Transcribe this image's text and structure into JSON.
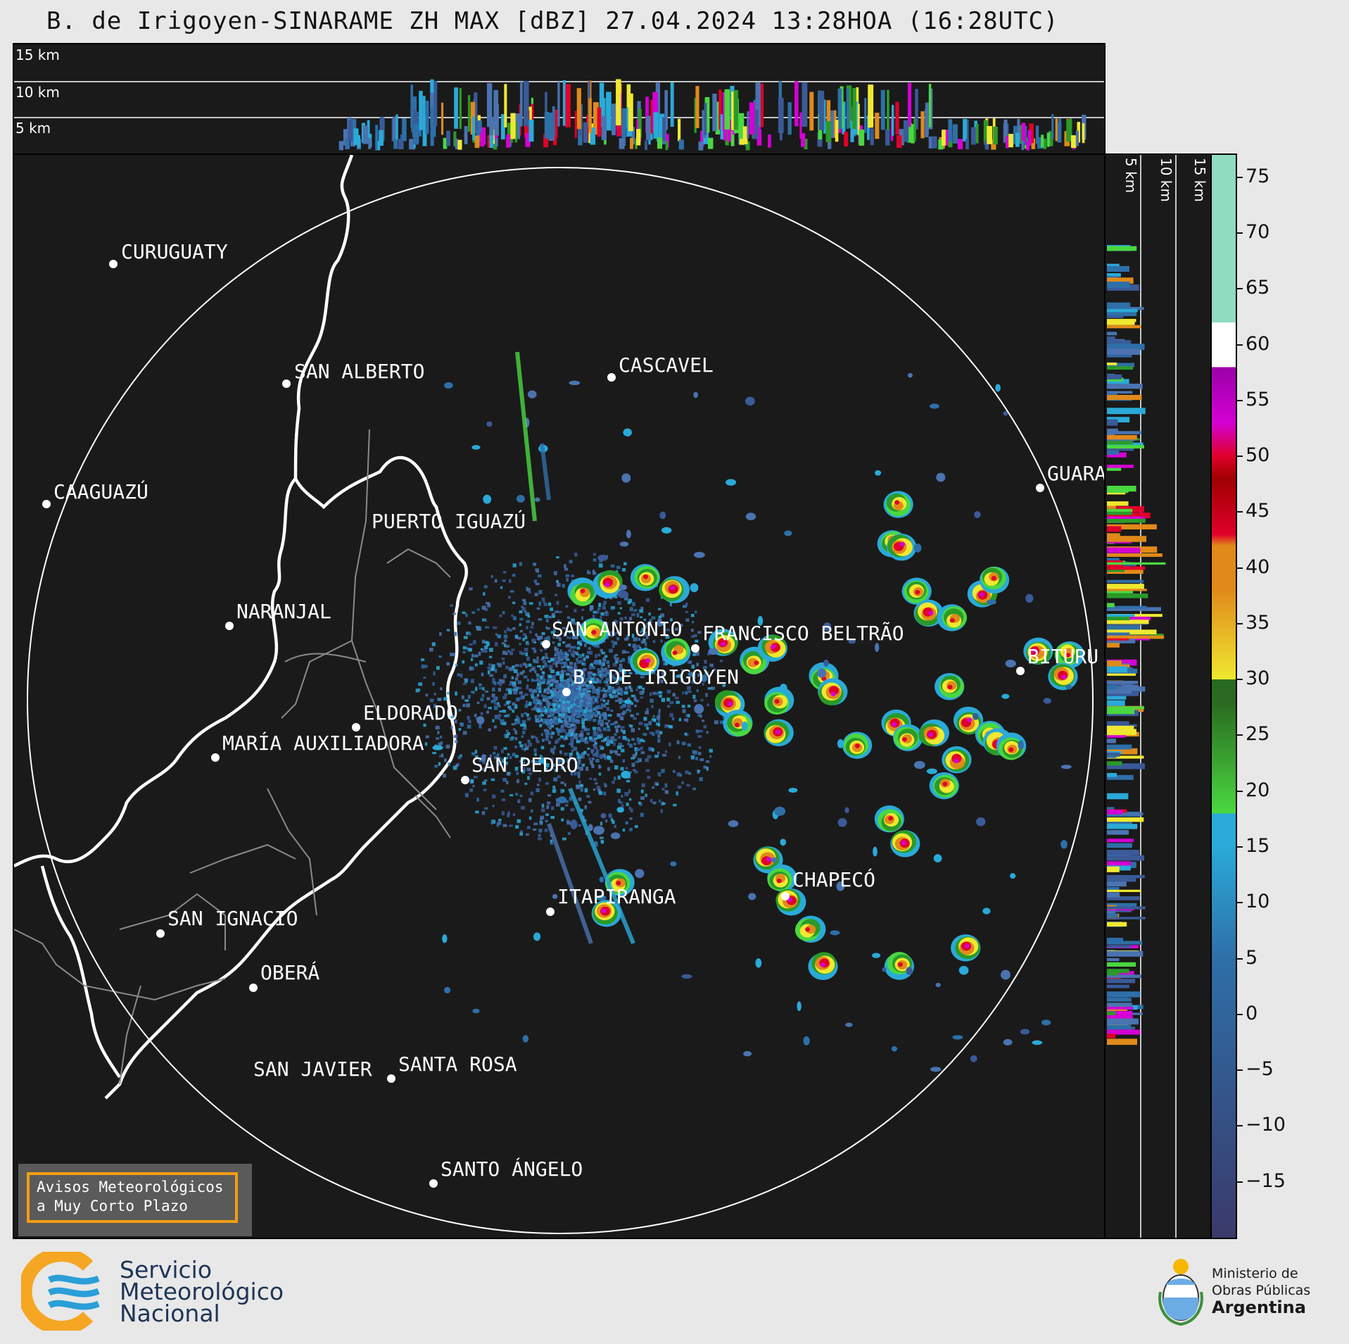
{
  "title": "B. de Irigoyen-SINARAME ZH MAX [dBZ] 27.04.2024 13:28HOA (16:28UTC)",
  "top_panel": {
    "height_labels": [
      "15 km",
      "10 km",
      "5 km"
    ]
  },
  "side_panel": {
    "height_labels": [
      "5 km",
      "10 km",
      "15 km"
    ]
  },
  "cities": [
    {
      "id": "curuguaty",
      "name": "CURUGUATY"
    },
    {
      "id": "san-alberto",
      "name": "SAN ALBERTO"
    },
    {
      "id": "cascavel",
      "name": "CASCAVEL"
    },
    {
      "id": "caaguazu",
      "name": "CAAGUAZÚ"
    },
    {
      "id": "guarapuava",
      "name": "GUARA"
    },
    {
      "id": "puerto-iguazu",
      "name": "PUERTO IGUAZÚ"
    },
    {
      "id": "naranjal",
      "name": "NARANJAL"
    },
    {
      "id": "san-antonio",
      "name": "SAN ANTONIO"
    },
    {
      "id": "francisco-beltrao",
      "name": "FRANCISCO BELTRÃO"
    },
    {
      "id": "bituruna",
      "name": "BITURU"
    },
    {
      "id": "b-de-irigoyen",
      "name": "B. DE IRIGOYEN"
    },
    {
      "id": "eldorado",
      "name": "ELDORADO"
    },
    {
      "id": "maria-auxiliadora",
      "name": "MARÍA AUXILIADORA"
    },
    {
      "id": "san-pedro",
      "name": "SAN PEDRO"
    },
    {
      "id": "chapeco",
      "name": "CHAPECÓ"
    },
    {
      "id": "itapiranga",
      "name": "ITAPIRANGA"
    },
    {
      "id": "san-ignacio",
      "name": "SAN IGNACIO"
    },
    {
      "id": "obera",
      "name": "OBERÁ"
    },
    {
      "id": "san-javier",
      "name": "SAN JAVIER"
    },
    {
      "id": "santa-rosa",
      "name": "SANTA ROSA"
    },
    {
      "id": "santo-angelo",
      "name": "SANTO ÁNGELO"
    }
  ],
  "colorbar": {
    "unit": "dBZ",
    "ticks": [
      "75",
      "70",
      "65",
      "60",
      "55",
      "50",
      "45",
      "40",
      "35",
      "30",
      "25",
      "20",
      "15",
      "10",
      "5",
      "0",
      "−5",
      "−10",
      "−15"
    ],
    "range": [
      -20,
      77
    ],
    "colors": {
      "teal_high": "#8fdcc0",
      "white": "#ffffff",
      "magenta": "#d400d4",
      "purple": "#9b00a8",
      "red": "#e0002a",
      "dark_red": "#a00000",
      "orange": "#e08a1a",
      "yellow": "#f0e830",
      "dark_green": "#2a6a20",
      "green": "#4ad840",
      "cyan": "#2aaad8",
      "blue": "#2e6fa8",
      "dark_blue": "#3a3a6a"
    }
  },
  "avisos": {
    "line1": "Avisos Meteorológicos",
    "line2": "a Muy Corto Plazo"
  },
  "smn_logo": {
    "line1": "Servicio",
    "line2": "Meteorológico",
    "line3": "Nacional"
  },
  "ministerio_logo": {
    "line1": "Ministerio de",
    "line2": "Obras Públicas",
    "line3": "Argentina"
  }
}
